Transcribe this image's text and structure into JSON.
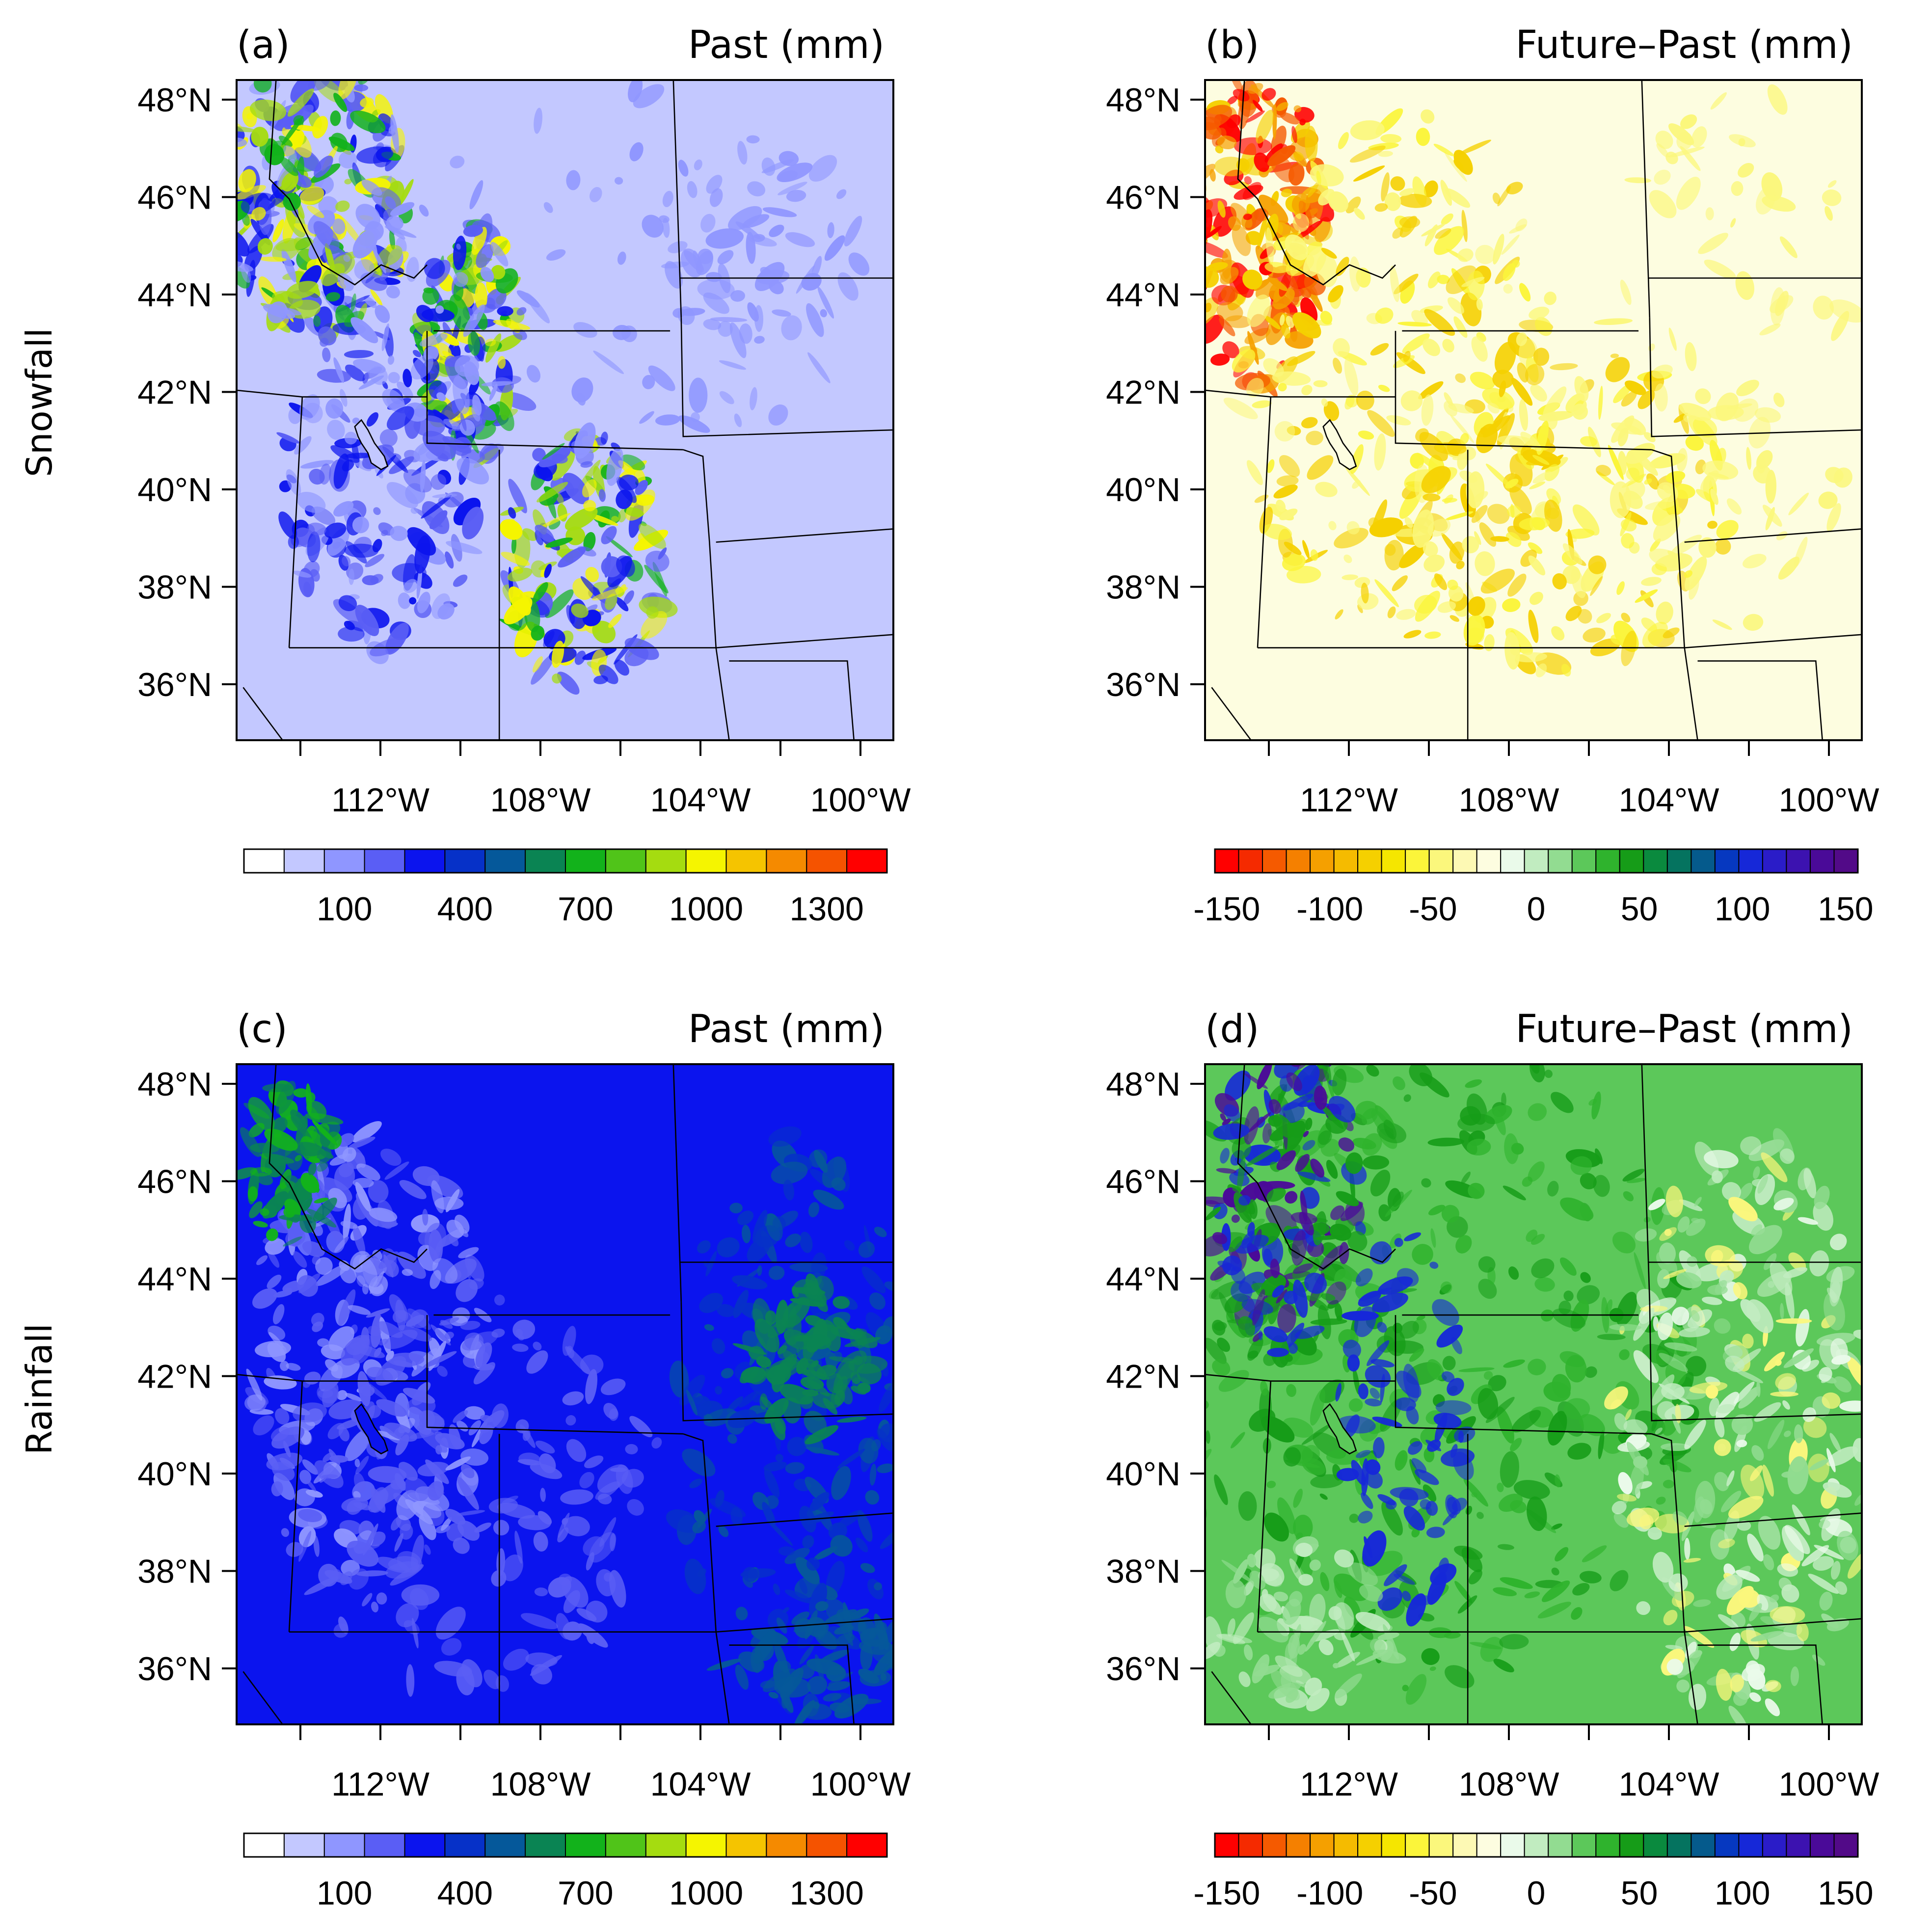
{
  "row_labels": [
    "Snowfall",
    "Rainfall"
  ],
  "lat_ticks": [
    "48°N",
    "46°N",
    "44°N",
    "42°N",
    "40°N",
    "38°N",
    "36°N"
  ],
  "lon_ticks": [
    "112°W",
    "108°W",
    "104°W",
    "100°W"
  ],
  "colorbars": {
    "past": {
      "labels": [
        "100",
        "400",
        "700",
        "1000",
        "1300"
      ],
      "colors": [
        "#ffffff",
        "#c3c8ff",
        "#8f96ff",
        "#5a5ef5",
        "#0b14ee",
        "#0631c8",
        "#05589a",
        "#0a8453",
        "#12b21b",
        "#50c419",
        "#a5dc10",
        "#f5f500",
        "#f5c400",
        "#f58a00",
        "#f55300",
        "#ff0000"
      ]
    },
    "diff": {
      "labels": [
        "-150",
        "-100",
        "-50",
        "0",
        "50",
        "100",
        "150"
      ],
      "colors": [
        "#ff0000",
        "#f52a00",
        "#f55a00",
        "#f58000",
        "#f5a000",
        "#f5bb00",
        "#f5d000",
        "#f5e600",
        "#fbf53a",
        "#fbf77c",
        "#fdf9b4",
        "#fdfde0",
        "#eafaea",
        "#c1ecc0",
        "#92dc91",
        "#5cc85a",
        "#2fb32d",
        "#169c18",
        "#0a8a3e",
        "#05735f",
        "#055a8c",
        "#0638c0",
        "#1628d8",
        "#2a1cc8",
        "#3c12b0",
        "#4a0a98",
        "#520a88"
      ]
    }
  },
  "chart_data": [
    {
      "panel": "(a)",
      "title": "Past (mm)",
      "row": "Snowfall",
      "type": "heatmap",
      "lat_range_degN": [
        34.8,
        48.5
      ],
      "lon_range_degW": [
        116.5,
        98.8
      ],
      "colorbar": "past",
      "color_levels": [
        100,
        400,
        700,
        1000,
        1300
      ],
      "background_color": "#c3c8ff",
      "field_colors": [
        "#8f96ff",
        "#5a5ef5",
        "#0b14ee",
        "#12b21b",
        "#a5dc10",
        "#f5f500"
      ]
    },
    {
      "panel": "(b)",
      "title": "Future–Past (mm)",
      "row": "Snowfall",
      "type": "heatmap",
      "lat_range_degN": [
        34.8,
        48.5
      ],
      "lon_range_degW": [
        116.5,
        98.8
      ],
      "colorbar": "diff",
      "color_levels": [
        -150,
        -100,
        -50,
        0,
        50,
        100,
        150
      ],
      "background_color": "#fdfde0",
      "field_colors": [
        "#fbf77c",
        "#fbf53a",
        "#f5d000",
        "#f5a000",
        "#f55a00",
        "#ff0000"
      ]
    },
    {
      "panel": "(c)",
      "title": "Past (mm)",
      "row": "Rainfall",
      "type": "heatmap",
      "lat_range_degN": [
        34.8,
        48.5
      ],
      "lon_range_degW": [
        116.5,
        98.8
      ],
      "colorbar": "past",
      "color_levels": [
        100,
        400,
        700,
        1000,
        1300
      ],
      "background_color": "#0b14ee",
      "field_colors": [
        "#8f96ff",
        "#5a5ef5",
        "#0631c8",
        "#05589a",
        "#0a8453",
        "#12b21b"
      ]
    },
    {
      "panel": "(d)",
      "title": "Future–Past (mm)",
      "row": "Rainfall",
      "type": "heatmap",
      "lat_range_degN": [
        34.8,
        48.5
      ],
      "lon_range_degW": [
        116.5,
        98.8
      ],
      "colorbar": "diff",
      "color_levels": [
        -150,
        -100,
        -50,
        0,
        50,
        100,
        150
      ],
      "background_color": "#5cc85a",
      "field_colors": [
        "#2fb32d",
        "#169c18",
        "#92dc91",
        "#c1ecc0",
        "#eafaea",
        "#1628d8",
        "#4a0a98",
        "#fbf77c"
      ]
    }
  ]
}
